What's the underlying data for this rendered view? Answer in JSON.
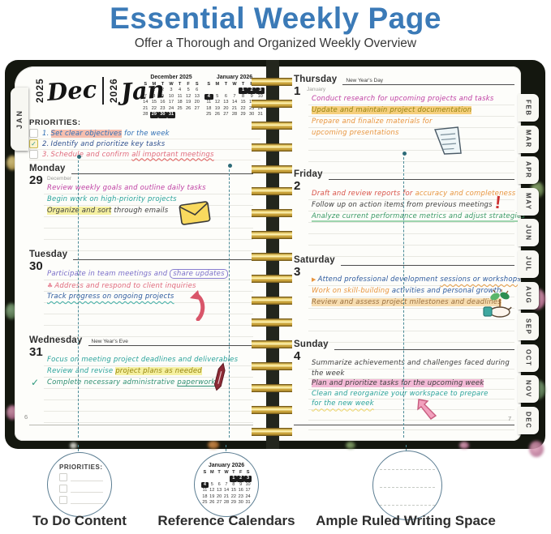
{
  "colors": {
    "title_blue": "#3b7ab7",
    "highlight_yellow": "#f5f0a0",
    "highlight_orange": "#f6cf7d",
    "highlight_pink": "#f3b9d6",
    "highlight_salmon": "#f6beae",
    "highlight_peach": "#f7ddb0",
    "spiral_gold": "#c9a23a",
    "cover_dark": "#14170f"
  },
  "header": {
    "title": "Essential Weekly Page",
    "subtitle": "Offer a Thorough and Organized Weekly Overview"
  },
  "planner": {
    "left_tab": "JAN",
    "right_tabs": [
      "FEB",
      "MAR",
      "APR",
      "MAY",
      "JUN",
      "JUL",
      "AUG",
      "SEP",
      "OCT",
      "NOV",
      "DEC"
    ],
    "left_page": {
      "years": {
        "left_year": "2025",
        "left_month": "Dec",
        "right_year": "2026",
        "right_month": "Jan"
      },
      "calendars": {
        "december": {
          "title": "December 2025",
          "dow": [
            "S",
            "M",
            "T",
            "W",
            "T",
            "F",
            "S"
          ],
          "weeks": [
            [
              "",
              "1",
              "2",
              "3",
              "4",
              "5",
              "6"
            ],
            [
              "7",
              "8",
              "9",
              "10",
              "11",
              "12",
              "13"
            ],
            [
              "14",
              "15",
              "16",
              "17",
              "18",
              "19",
              "20"
            ],
            [
              "21",
              "22",
              "23",
              "24",
              "25",
              "26",
              "27"
            ],
            [
              "28",
              "29",
              "30",
              "31",
              "",
              "",
              ""
            ]
          ],
          "highlighted": [
            29,
            30,
            31
          ]
        },
        "january": {
          "title": "January 2026",
          "dow": [
            "S",
            "M",
            "T",
            "W",
            "T",
            "F",
            "S"
          ],
          "weeks": [
            [
              "",
              "",
              "",
              "",
              "1",
              "2",
              "3"
            ],
            [
              "4",
              "5",
              "6",
              "7",
              "8",
              "9",
              "10"
            ],
            [
              "11",
              "12",
              "13",
              "14",
              "15",
              "16",
              "17"
            ],
            [
              "18",
              "19",
              "20",
              "21",
              "22",
              "23",
              "24"
            ],
            [
              "25",
              "26",
              "27",
              "28",
              "29",
              "30",
              "31"
            ]
          ],
          "highlighted": [
            1,
            2,
            3,
            4
          ]
        }
      },
      "priorities": {
        "label": "PRIORITIES:",
        "check_glyph": "✓",
        "item1": {
          "num": "1.",
          "hl": "Set clear objectives",
          "rest": " for the week"
        },
        "item2": {
          "num": "2.",
          "text": "Identify and prioritize key tasks"
        },
        "item3": {
          "num": "3.",
          "pre": "Schedule and confirm ",
          "wavy": "all important meetings"
        }
      },
      "days": {
        "monday": {
          "name": "Monday",
          "num": "29",
          "sub": "December",
          "n1": "Review weekly goals and outline daily tasks",
          "n2": "Begin work on high-priority projects",
          "n3a": "Organize and sort",
          "n3b": " through emails",
          "icon": "envelope-icon"
        },
        "tuesday": {
          "name": "Tuesday",
          "num": "30",
          "n1a": "Participate in team meetings and ",
          "n1b": "share updates",
          "glyph": "♣",
          "n2": "Address and respond to client inquiries",
          "n3": "Track progress on ongoing projects",
          "icon": "curved-arrow-icon"
        },
        "wednesday": {
          "name": "Wednesday",
          "num": "31",
          "holiday": "New Year's Eve",
          "n1": "Focus on meeting project deadlines and deliverables",
          "n2a": "Review and revise ",
          "n2b": "project plans as needed",
          "check": "✓",
          "n3a": "Complete necessary administrative ",
          "n3b": "paperwork",
          "icon": "pen-icon"
        }
      },
      "page_number": "6"
    },
    "right_page": {
      "days": {
        "thursday": {
          "name": "Thursday",
          "holiday": "New Year's Day",
          "num": "1",
          "sub": "January",
          "n1": "Conduct research for upcoming projects and tasks",
          "n2": "Update and maintain project documentation",
          "n3": "Prepare and finalize materials for",
          "n4": "upcoming presentations",
          "icon": "note-icon"
        },
        "friday": {
          "name": "Friday",
          "num": "2",
          "n1a": "Draft and review reports for ",
          "n1b": "accuracy and completeness",
          "n2": "Follow up on action items from previous meetings",
          "n3": "Analyze current performance metrics and adjust strategies",
          "exclamation": "!",
          "icon": "exclamation-icon"
        },
        "saturday": {
          "name": "Saturday",
          "num": "3",
          "bullet": "▶",
          "n1a": "Attend professional development ",
          "n1b": "sessions or workshops",
          "n2a": "Work on skill-building",
          "n2b": " activities and personal growth",
          "n3": "Review and assess project milestones and deadlines",
          "icon": "hand-plant-icon"
        },
        "sunday": {
          "name": "Sunday",
          "num": "4",
          "n1": "Summarize achievements and challenges faced during",
          "n2": "the week",
          "n3": "Plan and prioritize tasks for the upcoming week",
          "n4": "Clean and reorganize your workspace to prepare",
          "n5": "for the new week",
          "icon": "pink-arrow-icon"
        }
      },
      "page_number": "7"
    }
  },
  "callouts": {
    "todo": {
      "title": "PRIORITIES:",
      "label": "To Do Content"
    },
    "reference": {
      "label": "Reference Calendars",
      "calendar": {
        "title": "January 2026",
        "dow": [
          "S",
          "M",
          "T",
          "W",
          "T",
          "F",
          "S"
        ],
        "weeks": [
          [
            "",
            "",
            "",
            "",
            "1",
            "2",
            "3"
          ],
          [
            "4",
            "5",
            "6",
            "7",
            "8",
            "9",
            "10"
          ],
          [
            "11",
            "12",
            "13",
            "14",
            "15",
            "16",
            "17"
          ],
          [
            "18",
            "19",
            "20",
            "21",
            "22",
            "23",
            "24"
          ],
          [
            "25",
            "26",
            "27",
            "28",
            "29",
            "30",
            "31"
          ]
        ],
        "highlighted": [
          1,
          2,
          3,
          4
        ]
      }
    },
    "ruled": {
      "label": "Ample Ruled Writing Space"
    }
  }
}
